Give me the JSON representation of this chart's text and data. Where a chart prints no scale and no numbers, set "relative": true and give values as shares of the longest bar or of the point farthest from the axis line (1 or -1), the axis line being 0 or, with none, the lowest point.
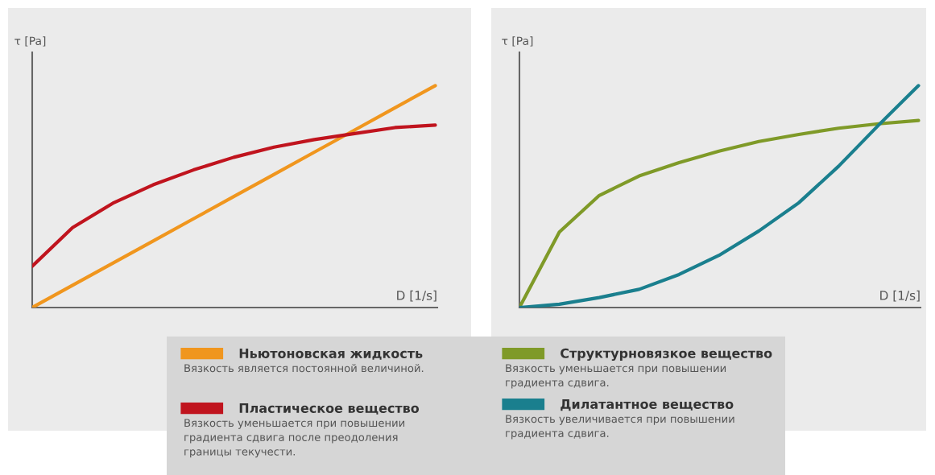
{
  "chart_data": [
    {
      "type": "line",
      "relative": true,
      "xlabel": "D [1/s]",
      "ylabel": "τ [Pa]",
      "legend": "bottom",
      "marker": "none",
      "line_style": "solid",
      "categories": [
        null,
        null,
        null,
        null,
        null,
        null,
        null,
        null,
        null,
        null,
        null
      ],
      "series": [
        {
          "name": "Ньютоновская жидкость",
          "color": "#f0961e",
          "values": [
            0,
            0.1,
            0.2,
            0.3,
            0.4,
            0.5,
            0.6,
            0.7,
            0.8,
            0.9,
            1.0
          ]
        },
        {
          "name": "Пластическое вещество",
          "color": "#c0141e",
          "values": [
            0.186,
            0.36,
            0.47,
            0.553,
            0.62,
            0.677,
            0.723,
            0.757,
            0.784,
            0.811,
            0.822
          ]
        }
      ],
      "annotations": [
        "Вязкость является постоянной величиной.",
        "Вязкость уменьшается при повышении\nградиента сдвига после преодоления\nграницы текучести."
      ]
    },
    {
      "type": "line",
      "relative": true,
      "xlabel": "D [1/s]",
      "ylabel": "τ [Pa]",
      "legend": "bottom",
      "marker": "none",
      "line_style": "solid",
      "categories": [
        null,
        null,
        null,
        null,
        null,
        null,
        null,
        null,
        null,
        null,
        null
      ],
      "series": [
        {
          "name": "Структурновязкое вещество",
          "color": "#7f9a28",
          "values": [
            0,
            0.34,
            0.505,
            0.593,
            0.653,
            0.705,
            0.748,
            0.78,
            0.808,
            0.828,
            0.843
          ]
        },
        {
          "name": "Дилатантное вещество",
          "color": "#1a7f8e",
          "values": [
            0,
            0.015,
            0.045,
            0.082,
            0.149,
            0.235,
            0.345,
            0.472,
            0.637,
            0.822,
            1.0
          ]
        }
      ],
      "annotations": [
        "Вязкость уменьшается при повышении\nградиента сдвига.",
        "Вязкость увеличивается при повышении\nградиента сдвига."
      ]
    }
  ]
}
